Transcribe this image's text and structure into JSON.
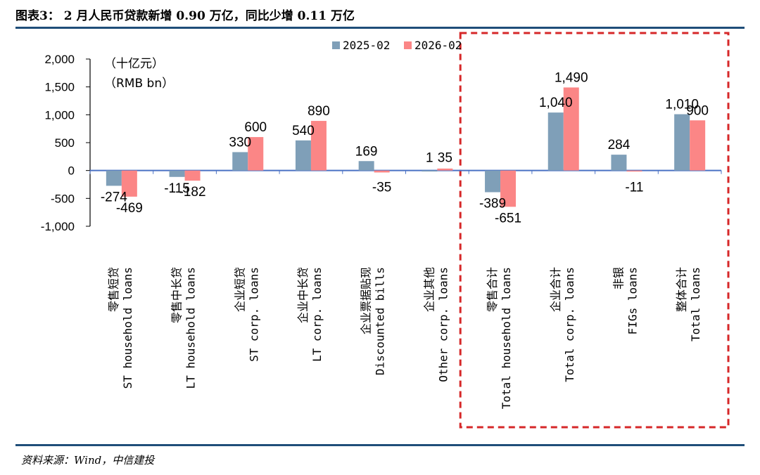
{
  "header": {
    "title": "图表3： 2 月人民币贷款新增 0.90 万亿，同比少增 0.11 万亿"
  },
  "footer": {
    "source": "资料来源：Wind，中信建投"
  },
  "chart_data": {
    "type": "bar",
    "unit_lines": [
      "（十亿元）",
      "（RMB bn）"
    ],
    "ylim": [
      -1000,
      2000
    ],
    "yticks": [
      2000,
      1500,
      1000,
      500,
      0,
      -500,
      -1000
    ],
    "ytick_labels": [
      "2,000",
      "1,500",
      "1,000",
      "500",
      "0",
      "-500",
      "-1,000"
    ],
    "legend_position": "top-right",
    "categories": [
      {
        "cn": "零售短贷",
        "en": "ST household loans"
      },
      {
        "cn": "零售中长贷",
        "en": "LT household loans"
      },
      {
        "cn": "企业短贷",
        "en": "ST corp. loans"
      },
      {
        "cn": "企业中长贷",
        "en": "LT corp. loans"
      },
      {
        "cn": "企业票据贴现",
        "en": "Discounted bills"
      },
      {
        "cn": "企业其他",
        "en": "Other corp. loans"
      },
      {
        "cn": "零售合计",
        "en": "Total household loans"
      },
      {
        "cn": "企业合计",
        "en": "Total corp. loans"
      },
      {
        "cn": "非银",
        "en": "FIGs loans"
      },
      {
        "cn": "整体合计",
        "en": "Total loans"
      }
    ],
    "series": [
      {
        "name": "2025-02",
        "color": "#7f9fb8",
        "values": [
          -274,
          -115,
          330,
          540,
          169,
          1,
          -389,
          1040,
          284,
          1010
        ],
        "labels": [
          "-274",
          "-115",
          "330",
          "540",
          "169",
          "1",
          "-389",
          "1,040",
          "284",
          "1,010"
        ]
      },
      {
        "name": "2026-02",
        "color": "#fb8686",
        "values": [
          -469,
          -182,
          600,
          890,
          -35,
          35,
          -651,
          1490,
          -11,
          900
        ],
        "labels": [
          "-469",
          "-182",
          "600",
          "890",
          "-35",
          "35",
          "-651",
          "1,490",
          "-11",
          "900"
        ]
      }
    ],
    "highlight": {
      "from_category": 6,
      "to_category": 9,
      "color": "#d62728",
      "style": "dashed"
    }
  }
}
